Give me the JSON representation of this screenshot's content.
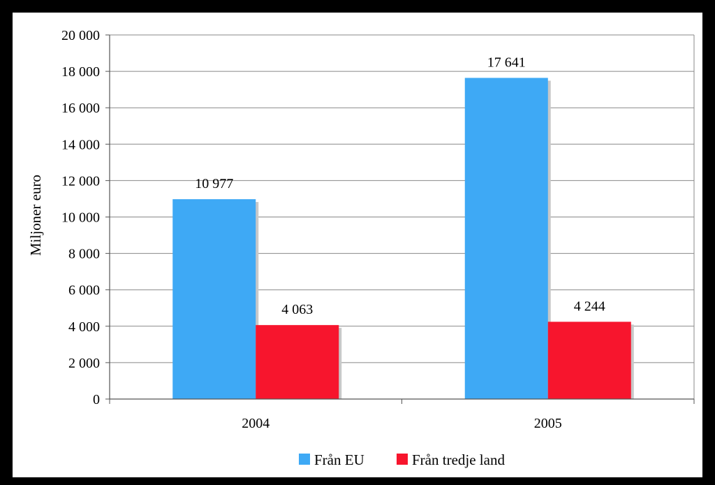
{
  "chart_data": {
    "type": "bar",
    "categories": [
      "2004",
      "2005"
    ],
    "series": [
      {
        "name": "Från EU",
        "values": [
          10977,
          17641
        ],
        "labels": [
          "10 977",
          "17 641"
        ],
        "color": "#3ea9f5"
      },
      {
        "name": "Från tredje land",
        "values": [
          4063,
          4244
        ],
        "labels": [
          "4 063",
          "4 244"
        ],
        "color": "#f7152d"
      }
    ],
    "ylabel": "Miljoner euro",
    "ylim": [
      0,
      20000
    ],
    "yticks": [
      0,
      2000,
      4000,
      6000,
      8000,
      10000,
      12000,
      14000,
      16000,
      18000,
      20000
    ],
    "ytick_labels": [
      "0",
      "2 000",
      "4 000",
      "6 000",
      "8 000",
      "10 000",
      "12 000",
      "14 000",
      "16 000",
      "18 000",
      "20 000"
    ],
    "grid": true,
    "legend": "bottom"
  }
}
